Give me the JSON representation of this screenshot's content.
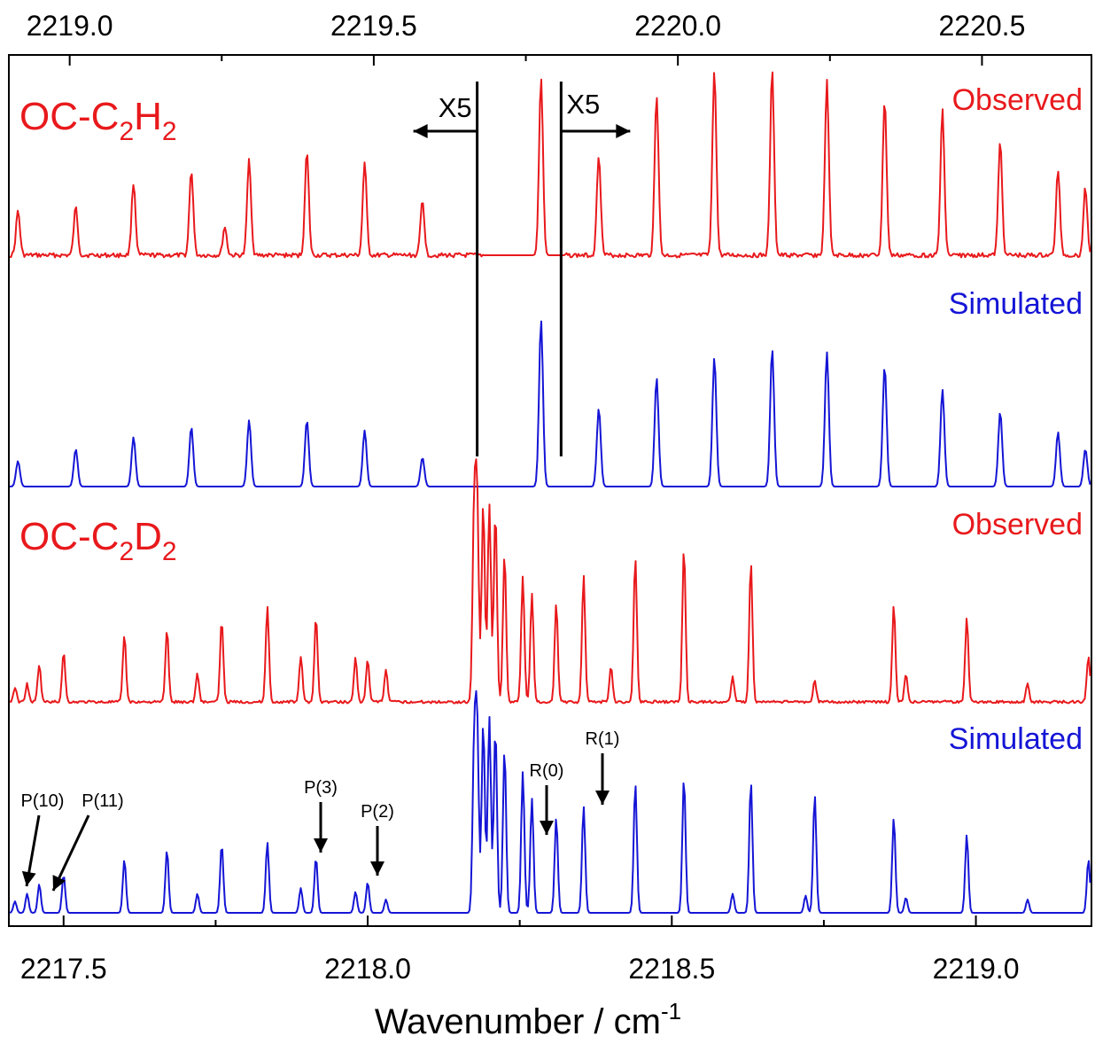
{
  "chart_data": {
    "type": "line",
    "xlabel": "Wavenumber / cm",
    "xlabel_sup": "-1",
    "top_axis": {
      "range": [
        2218.9,
        2220.68
      ],
      "ticks": [
        "2219.0",
        "2219.5",
        "2220.0",
        "2220.5"
      ],
      "tick_values": [
        2219.0,
        2219.5,
        2220.0,
        2220.5
      ]
    },
    "bottom_axis": {
      "range": [
        2217.41,
        2219.19
      ],
      "ticks": [
        "2217.5",
        "2218.0",
        "2218.5",
        "2219.0"
      ],
      "tick_values": [
        2217.5,
        2218.0,
        2218.5,
        2219.0
      ]
    },
    "colors": {
      "observed": "#e8191c",
      "simulated": "#1515d6",
      "axis": "#000000"
    },
    "species": [
      {
        "name_parts": [
          "OC-C",
          "2",
          "H",
          "2"
        ],
        "axis": "top"
      },
      {
        "name_parts": [
          "OC-C",
          "2",
          "D",
          "2"
        ],
        "axis": "bottom"
      }
    ],
    "series": [
      {
        "name": "Observed",
        "species": "OC-C2H2",
        "axis": "top",
        "peaks": [
          [
            2218.915,
            0.25
          ],
          [
            2219.01,
            0.27
          ],
          [
            2219.105,
            0.41
          ],
          [
            2219.2,
            0.48
          ],
          [
            2219.255,
            0.16
          ],
          [
            2219.295,
            0.54
          ],
          [
            2219.39,
            0.58
          ],
          [
            2219.485,
            0.52
          ],
          [
            2219.58,
            0.31
          ],
          [
            2219.775,
            1.0
          ],
          [
            2219.87,
            0.57
          ],
          [
            2219.965,
            0.91
          ],
          [
            2220.06,
            1.05
          ],
          [
            2220.155,
            1.04
          ],
          [
            2220.245,
            0.98
          ],
          [
            2220.34,
            0.88
          ],
          [
            2220.435,
            0.82
          ],
          [
            2220.53,
            0.64
          ],
          [
            2220.625,
            0.48
          ],
          [
            2220.67,
            0.38
          ]
        ]
      },
      {
        "name": "Simulated",
        "species": "OC-C2H2",
        "axis": "top",
        "peaks": [
          [
            2218.915,
            0.15
          ],
          [
            2219.01,
            0.22
          ],
          [
            2219.105,
            0.29
          ],
          [
            2219.2,
            0.35
          ],
          [
            2219.295,
            0.39
          ],
          [
            2219.39,
            0.39
          ],
          [
            2219.485,
            0.33
          ],
          [
            2219.58,
            0.17
          ],
          [
            2219.775,
            0.98
          ],
          [
            2219.87,
            0.46
          ],
          [
            2219.965,
            0.64
          ],
          [
            2220.06,
            0.76
          ],
          [
            2220.155,
            0.81
          ],
          [
            2220.245,
            0.79
          ],
          [
            2220.34,
            0.71
          ],
          [
            2220.435,
            0.57
          ],
          [
            2220.53,
            0.44
          ],
          [
            2220.625,
            0.32
          ],
          [
            2220.67,
            0.22
          ]
        ]
      },
      {
        "name": "Observed",
        "species": "OC-C2D2",
        "axis": "bottom",
        "peaks": [
          [
            2217.42,
            0.08
          ],
          [
            2217.44,
            0.1
          ],
          [
            2217.46,
            0.21
          ],
          [
            2217.5,
            0.28
          ],
          [
            2217.6,
            0.38
          ],
          [
            2217.67,
            0.41
          ],
          [
            2217.72,
            0.16
          ],
          [
            2217.76,
            0.46
          ],
          [
            2217.835,
            0.54
          ],
          [
            2217.89,
            0.26
          ],
          [
            2217.915,
            0.48
          ],
          [
            2217.98,
            0.25
          ],
          [
            2218.0,
            0.24
          ],
          [
            2218.03,
            0.18
          ],
          [
            2218.175,
            1.05
          ],
          [
            2218.18,
            1.1
          ],
          [
            2218.19,
            1.12
          ],
          [
            2218.2,
            1.12
          ],
          [
            2218.21,
            1.08
          ],
          [
            2218.225,
            0.84
          ],
          [
            2218.255,
            0.71
          ],
          [
            2218.27,
            0.61
          ],
          [
            2218.31,
            0.55
          ],
          [
            2218.355,
            0.71
          ],
          [
            2218.4,
            0.2
          ],
          [
            2218.44,
            0.82
          ],
          [
            2218.52,
            0.87
          ],
          [
            2218.6,
            0.14
          ],
          [
            2218.63,
            0.79
          ],
          [
            2218.735,
            0.12
          ],
          [
            2218.865,
            0.54
          ],
          [
            2218.885,
            0.15
          ],
          [
            2218.985,
            0.48
          ],
          [
            2219.085,
            0.1
          ],
          [
            2219.185,
            0.26
          ]
        ]
      },
      {
        "name": "Simulated",
        "species": "OC-C2D2",
        "axis": "bottom",
        "peaks": [
          [
            2217.42,
            0.06
          ],
          [
            2217.44,
            0.1
          ],
          [
            2217.46,
            0.15
          ],
          [
            2217.5,
            0.2
          ],
          [
            2217.6,
            0.28
          ],
          [
            2217.67,
            0.33
          ],
          [
            2217.72,
            0.1
          ],
          [
            2217.76,
            0.36
          ],
          [
            2217.835,
            0.37
          ],
          [
            2217.89,
            0.13
          ],
          [
            2217.915,
            0.29
          ],
          [
            2217.98,
            0.11
          ],
          [
            2218.0,
            0.16
          ],
          [
            2218.03,
            0.07
          ],
          [
            2218.175,
            0.85
          ],
          [
            2218.18,
            0.96
          ],
          [
            2218.19,
            1.0
          ],
          [
            2218.2,
            1.03
          ],
          [
            2218.21,
            0.97
          ],
          [
            2218.225,
            0.86
          ],
          [
            2218.255,
            0.74
          ],
          [
            2218.27,
            0.6
          ],
          [
            2218.31,
            0.5
          ],
          [
            2218.355,
            0.56
          ],
          [
            2218.44,
            0.68
          ],
          [
            2218.52,
            0.71
          ],
          [
            2218.6,
            0.1
          ],
          [
            2218.63,
            0.69
          ],
          [
            2218.72,
            0.09
          ],
          [
            2218.735,
            0.62
          ],
          [
            2218.865,
            0.5
          ],
          [
            2218.885,
            0.08
          ],
          [
            2218.985,
            0.41
          ],
          [
            2219.085,
            0.07
          ],
          [
            2219.185,
            0.28
          ]
        ]
      }
    ],
    "annotations": [
      {
        "label": "X5",
        "direction": "left",
        "x_top": 2219.67
      },
      {
        "label": "X5",
        "direction": "right",
        "x_top": 2219.808
      },
      {
        "label": "P(10)",
        "x_bottom": 2217.44
      },
      {
        "label": "P(11)",
        "x_bottom": 2217.46
      },
      {
        "label": "P(3)",
        "x_bottom": 2217.915
      },
      {
        "label": "P(2)",
        "x_bottom": 2218.0
      },
      {
        "label": "R(0)",
        "x_bottom": 2218.27
      },
      {
        "label": "R(1)",
        "x_bottom": 2218.355
      }
    ]
  }
}
